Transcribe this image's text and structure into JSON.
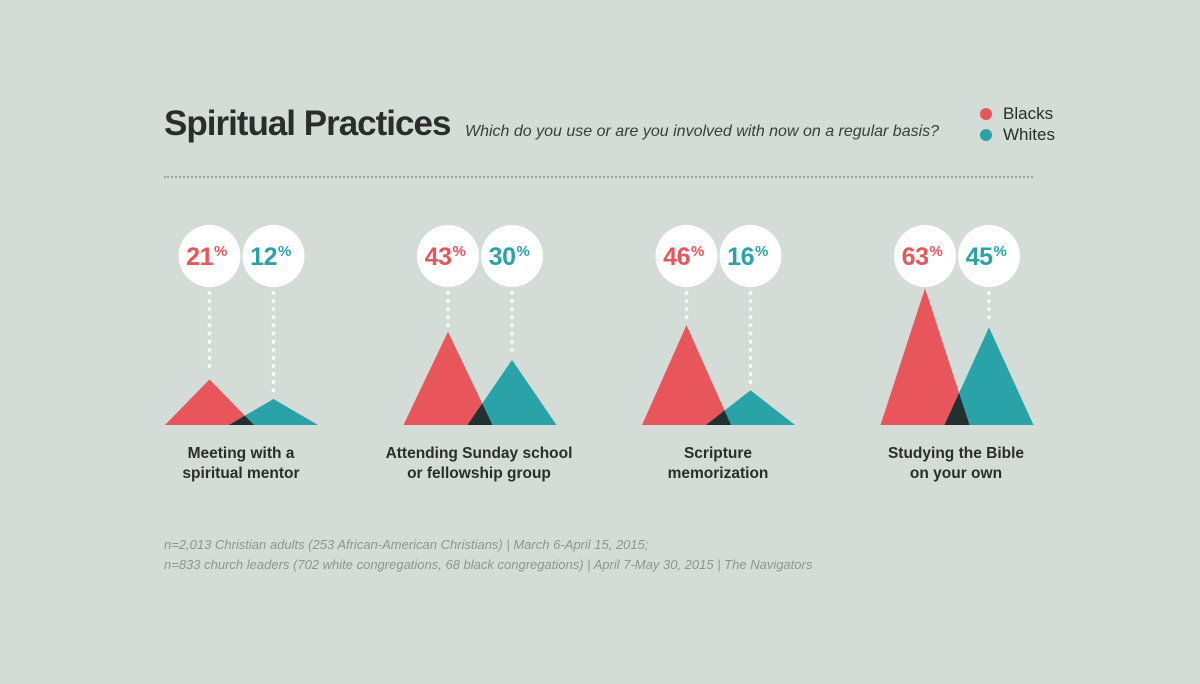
{
  "title": "Spiritual Practices",
  "subtitle": "Which do you use or are you involved with now on a regular basis?",
  "colors": {
    "blacks": "#e8555a",
    "whites": "#2aa3a8",
    "overlap": "#23302f",
    "background": "#d3dcd7"
  },
  "legend": [
    {
      "label": "Blacks",
      "color": "#e8555a"
    },
    {
      "label": "Whites",
      "color": "#2aa3a8"
    }
  ],
  "chart_data": {
    "type": "area",
    "title": "Spiritual Practices",
    "subtitle": "Which do you use or are you involved with now on a regular basis?",
    "unit": "%",
    "ylim": [
      0,
      100
    ],
    "categories": [
      {
        "line1": "Meeting with a",
        "line2": "spiritual mentor"
      },
      {
        "line1": "Attending Sunday school",
        "line2": "or fellowship group"
      },
      {
        "line1": "Scripture",
        "line2": "memorization"
      },
      {
        "line1": "Studying the Bible",
        "line2": "on your own"
      }
    ],
    "series": [
      {
        "name": "Blacks",
        "values": [
          21,
          43,
          46,
          63
        ]
      },
      {
        "name": "Whites",
        "values": [
          12,
          30,
          16,
          45
        ]
      }
    ],
    "legend_position": "top-right"
  },
  "notes": [
    "n=2,013 Christian adults (253 African-American Christians) | March 6-April 15, 2015;",
    "n=833 church leaders (702 white congregations, 68 black congregations) | April 7-May 30, 2015 | The Navigators"
  ]
}
